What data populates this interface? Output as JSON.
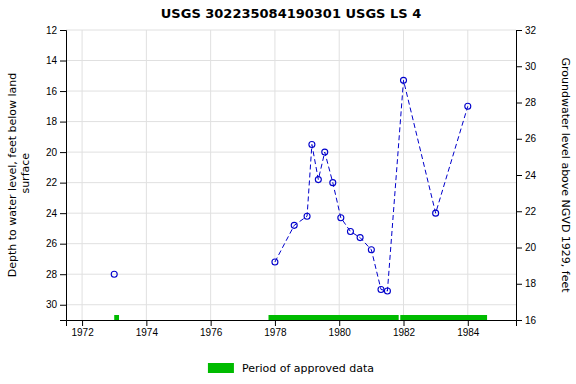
{
  "chart_data": {
    "type": "line",
    "title": "USGS 302235084190301 USGS LS 4",
    "ylabel": "Depth to water level, feet below land\n surface",
    "y2label": "Groundwater level above NGVD 1929, feet",
    "xlim": [
      1971.5,
      1985.5
    ],
    "xticks": [
      1972,
      1974,
      1976,
      1978,
      1980,
      1982,
      1984
    ],
    "ylim": [
      31,
      12
    ],
    "yticks": [
      12,
      14,
      16,
      18,
      20,
      22,
      24,
      26,
      28,
      30
    ],
    "y2lim": [
      16,
      32
    ],
    "y2ticks": [
      16,
      18,
      20,
      22,
      24,
      26,
      28,
      30,
      32
    ],
    "grid": true,
    "series": [
      {
        "x": [
          1973.0
        ],
        "values": [
          28.0
        ],
        "color": "#0000cc",
        "marker": "circle",
        "line_style": "dashed"
      },
      {
        "x": [
          1978.0,
          1978.6,
          1979.0,
          1979.15,
          1979.35,
          1979.55,
          1979.8,
          1980.05,
          1980.35,
          1980.65,
          1981.0,
          1981.3,
          1981.5,
          1982.0,
          1983.0,
          1984.0
        ],
        "values": [
          27.2,
          24.8,
          24.2,
          19.5,
          21.8,
          20.0,
          22.0,
          24.3,
          25.2,
          25.6,
          26.4,
          29.0,
          29.1,
          15.3,
          24.0,
          17.0
        ],
        "color": "#0000cc",
        "marker": "circle",
        "line_style": "dashed"
      }
    ],
    "approved": {
      "name": "Period of approved data",
      "color": "#00bb00",
      "ranges": [
        [
          1973.0,
          1973.15
        ],
        [
          1977.8,
          1981.85
        ],
        [
          1981.9,
          1984.6
        ]
      ]
    }
  }
}
